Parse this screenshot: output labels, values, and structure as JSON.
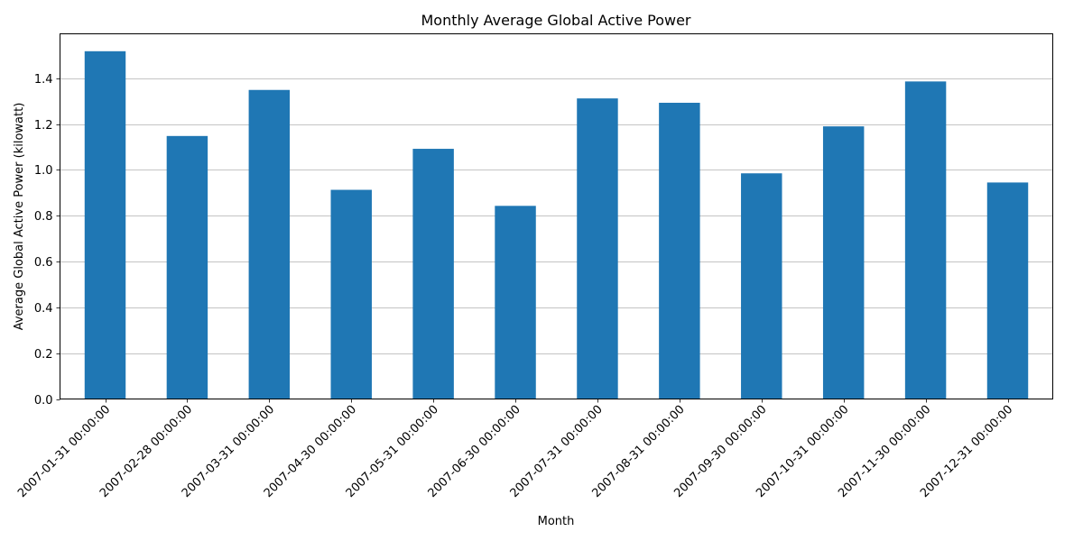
{
  "chart_data": {
    "type": "bar",
    "title": "Monthly Average Global Active Power",
    "xlabel": "Month",
    "ylabel": "Average Global Active Power (kilowatt)",
    "categories": [
      "2007-01-31 00:00:00",
      "2007-02-28 00:00:00",
      "2007-03-31 00:00:00",
      "2007-04-30 00:00:00",
      "2007-05-31 00:00:00",
      "2007-06-30 00:00:00",
      "2007-07-31 00:00:00",
      "2007-08-31 00:00:00",
      "2007-09-30 00:00:00",
      "2007-10-31 00:00:00",
      "2007-11-30 00:00:00",
      "2007-12-31 00:00:00"
    ],
    "values": [
      1.518,
      1.148,
      1.349,
      0.913,
      1.092,
      0.843,
      1.312,
      1.293,
      0.985,
      1.19,
      1.386,
      0.945
    ],
    "yticks": [
      "0.0",
      "0.2",
      "0.4",
      "0.6",
      "0.8",
      "1.0",
      "1.2",
      "1.4"
    ],
    "ylim": [
      0,
      1.594
    ],
    "grid": "y-major",
    "bar_color": "#1f77b4"
  }
}
